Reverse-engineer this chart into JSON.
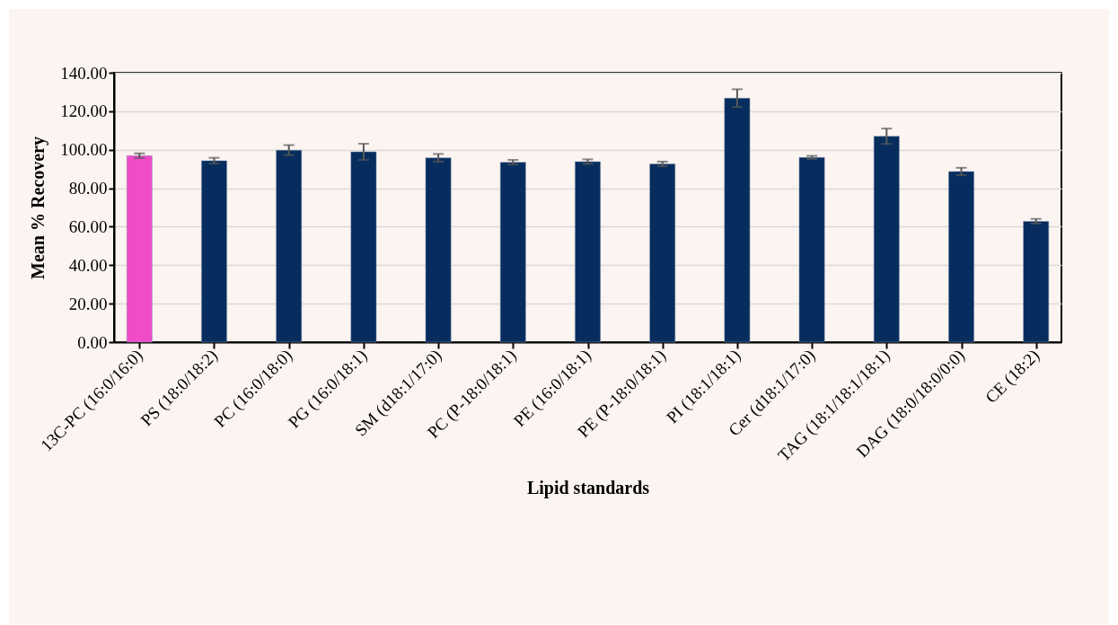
{
  "chart_data": {
    "type": "bar",
    "xlabel": "Lipid standards",
    "ylabel": "Mean % Recovery",
    "categories": [
      "13C-PC (16:0/16:0)",
      "PS (18:0/18:2)",
      "PC (16:0/18:0)",
      "PG (16:0/18:1)",
      "SM (d18:1/17:0)",
      "PC (P-18:0/18:1)",
      "PE (16:0/18:1)",
      "PE (P-18:0/18:1)",
      "PI (18:1/18:1)",
      "Cer (d18:1/17:0)",
      "TAG (18:1/18:1/18:1)",
      "DAG (18:0/18:0/0:0)",
      "CE (18:2)"
    ],
    "values": [
      96.9,
      94.3,
      99.8,
      98.9,
      95.8,
      93.5,
      93.8,
      92.6,
      126.8,
      96.0,
      107.0,
      88.7,
      62.8
    ],
    "errors": [
      1.2,
      1.5,
      2.6,
      4.2,
      2.0,
      1.2,
      1.2,
      1.2,
      4.6,
      0.8,
      4.0,
      1.9,
      1.2
    ],
    "colors": [
      "#f04bc8",
      "#062d5e",
      "#062d5e",
      "#062d5e",
      "#062d5e",
      "#062d5e",
      "#062d5e",
      "#062d5e",
      "#062d5e",
      "#062d5e",
      "#062d5e",
      "#062d5e",
      "#062d5e"
    ],
    "ylim": [
      0,
      140
    ],
    "yticks": [
      {
        "value": 0,
        "label": "0.00"
      },
      {
        "value": 20,
        "label": "20.00"
      },
      {
        "value": 40,
        "label": "40.00"
      },
      {
        "value": 60,
        "label": "60.00"
      },
      {
        "value": 80,
        "label": "80.00"
      },
      {
        "value": 100,
        "label": "100.00"
      },
      {
        "value": 120,
        "label": "120.00"
      },
      {
        "value": 140,
        "label": "140.00"
      }
    ],
    "grid": "y"
  }
}
